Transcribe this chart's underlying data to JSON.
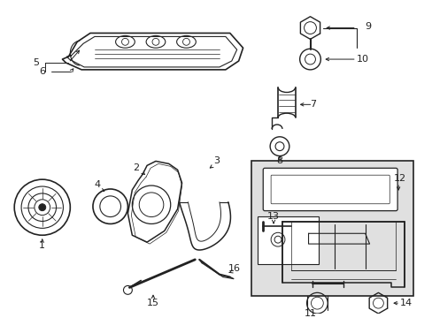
{
  "background_color": "#ffffff",
  "line_color": "#222222",
  "box_bg": "#e0e0e0",
  "figsize": [
    4.89,
    3.6
  ],
  "dpi": 100
}
